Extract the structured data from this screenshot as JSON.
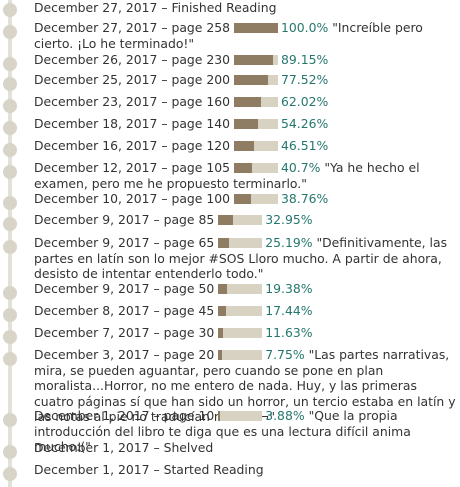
{
  "theme": {
    "bar_fill": "#8f7d63",
    "bar_track": "#d8d2c2",
    "percent_color": "#25776e",
    "dot_color": "#d8d4c7"
  },
  "entries": [
    {
      "date": "December 27, 2017",
      "status": "Finished Reading"
    },
    {
      "date": "December 27, 2017",
      "page": "page 258",
      "progress": 1.0,
      "percent": "100.0%",
      "comment": "\"Increíble pero cierto. ¡Lo he terminado!\""
    },
    {
      "date": "December 26, 2017",
      "page": "page 230",
      "progress": 0.8915,
      "percent": "89.15%"
    },
    {
      "date": "December 25, 2017",
      "page": "page 200",
      "progress": 0.7752,
      "percent": "77.52%"
    },
    {
      "date": "December 23, 2017",
      "page": "page 160",
      "progress": 0.6202,
      "percent": "62.02%"
    },
    {
      "date": "December 18, 2017",
      "page": "page 140",
      "progress": 0.5426,
      "percent": "54.26%"
    },
    {
      "date": "December 16, 2017",
      "page": "page 120",
      "progress": 0.4651,
      "percent": "46.51%"
    },
    {
      "date": "December 12, 2017",
      "page": "page 105",
      "progress": 0.407,
      "percent": "40.7%",
      "comment": "\"Ya he hecho el examen, pero me he propuesto terminarlo.\""
    },
    {
      "date": "December 10, 2017",
      "page": "page 100",
      "progress": 0.3876,
      "percent": "38.76%"
    },
    {
      "date": "December 9, 2017",
      "page": "page 85",
      "progress": 0.3295,
      "percent": "32.95%"
    },
    {
      "date": "December 9, 2017",
      "page": "page 65",
      "progress": 0.2519,
      "percent": "25.19%",
      "comment": "\"Definitivamente, las partes en latín son lo mejor #SOS Lloro mucho. A partir de ahora, desisto de intentar entenderlo todo.\""
    },
    {
      "date": "December 9, 2017",
      "page": "page 50",
      "progress": 0.1938,
      "percent": "19.38%"
    },
    {
      "date": "December 8, 2017",
      "page": "page 45",
      "progress": 0.1744,
      "percent": "17.44%"
    },
    {
      "date": "December 7, 2017",
      "page": "page 30",
      "progress": 0.1163,
      "percent": "11.63%"
    },
    {
      "date": "December 3, 2017",
      "page": "page 20",
      "progress": 0.0775,
      "percent": "7.75%",
      "comment": "\"Las partes narrativas, mira, se pueden aguantar, pero cuando se pone en plan moralista...Horror, no me entero de nada. Huy, y las primeras cuatro páginas sí que han sido un horror, un tercio estaba en latín y las notas al pie no traducían nada ¬¬\""
    },
    {
      "date": "December 1, 2017",
      "page": "page 10",
      "progress": 0.0388,
      "percent": "3.88%",
      "comment": "\"Que la propia introducción del libro te diga que es una lectura difícil anima mucho:(\""
    },
    {
      "date": "December 1, 2017",
      "status": "Shelved"
    },
    {
      "date": "December 1, 2017",
      "status": "Started Reading"
    }
  ]
}
